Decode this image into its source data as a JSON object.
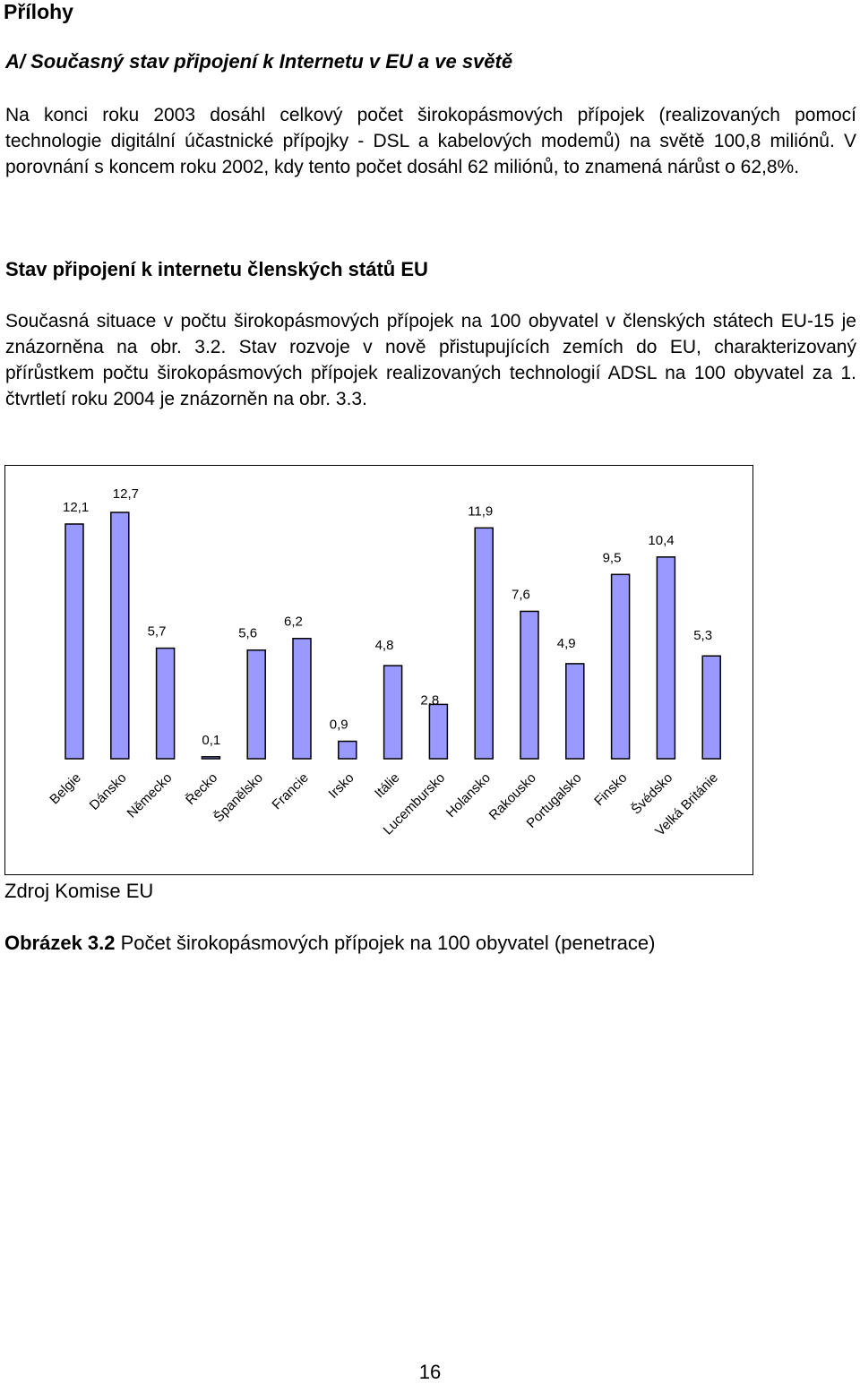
{
  "heading": "Přílohy",
  "subheading": "A/ Současný stav připojení k Internetu v EU a ve světě",
  "paragraph1": "Na konci roku 2003 dosáhl celkový počet širokopásmových přípojek (realizovaných pomocí technologie digitální účastnické přípojky - DSL a kabelových modemů) na světě 100,8 miliónů. V porovnání s koncem roku 2002, kdy tento počet dosáhl 62 miliónů, to znamená nárůst o 62,8%.",
  "section_title": "Stav připojení k internetu členských států EU",
  "paragraph2": "Současná situace v počtu širokopásmových přípojek na 100 obyvatel v členských státech EU-15 je znázorněna na obr. 3.2. Stav rozvoje v nově přistupujících zemích do EU, charakterizovaný přírůstkem počtu širokopásmových přípojek realizovaných technologií ADSL na 100 obyvatel za 1. čtvrtletí roku 2004 je znázorněn na obr. 3.3.",
  "chart_data": {
    "type": "bar",
    "title": "",
    "xlabel": "",
    "ylabel": "",
    "categories": [
      "Belgie",
      "Dánsko",
      "Německo",
      "Řecko",
      "Španělsko",
      "Francie",
      "Irsko",
      "Itálie",
      "Lucembursko",
      "Holansko",
      "Rakousko",
      "Portugalsko",
      "Finsko",
      "Švédsko",
      "Velká Británie"
    ],
    "values": [
      12.1,
      12.7,
      5.7,
      0.1,
      5.6,
      6.2,
      0.9,
      4.8,
      2.8,
      11.9,
      7.6,
      4.9,
      9.5,
      10.4,
      5.3
    ],
    "value_labels": [
      "12,1",
      "12,7",
      "5,7",
      "0,1",
      "5,6",
      "6,2",
      "0,9",
      "4,8",
      "2,8",
      "11,9",
      "7,6",
      "4,9",
      "9,5",
      "10,4",
      "5,3"
    ],
    "ylim": [
      0,
      12.7
    ],
    "grid": false,
    "legend": "none",
    "colors": {
      "bar_fill": "#9999ff",
      "bar_stroke": "#000000"
    }
  },
  "source": "Zdroj Komise EU",
  "caption": {
    "label": "Obrázek 3.2",
    "text": " Počet širokopásmových přípojek na 100 obyvatel (penetrace)"
  },
  "page_number": "16"
}
